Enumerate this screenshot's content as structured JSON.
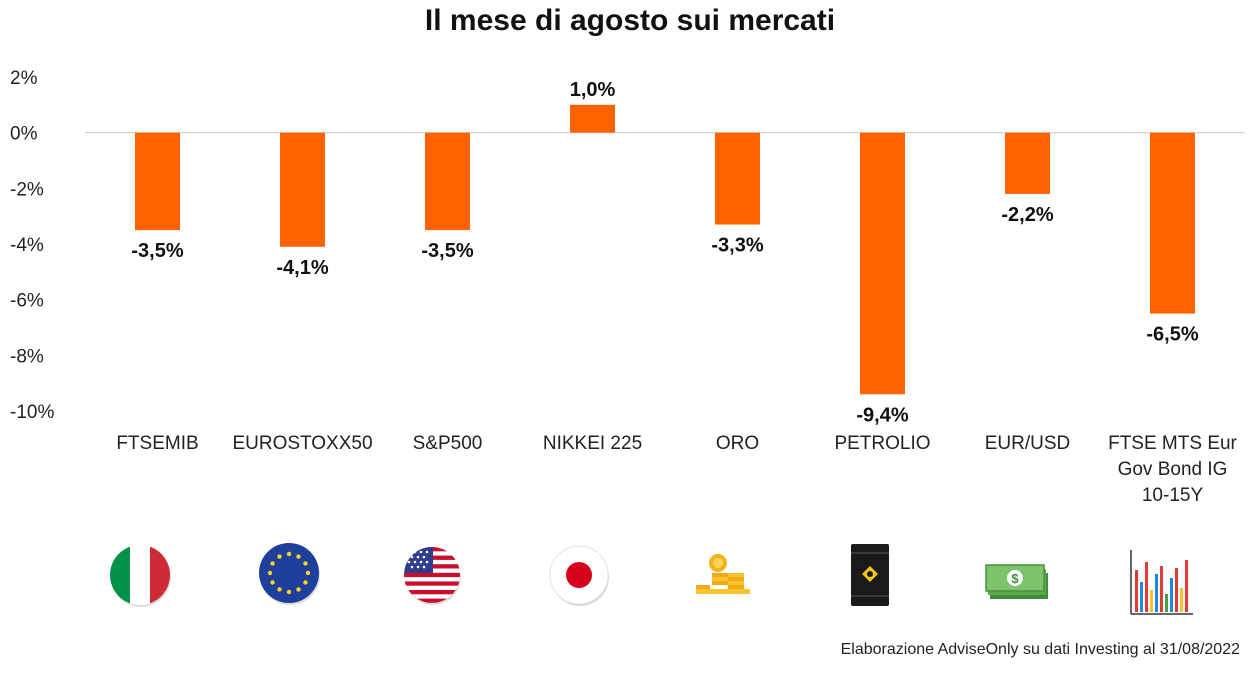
{
  "chart_data": {
    "type": "bar",
    "title": "Il mese di agosto sui mercati",
    "xlabel": "",
    "ylabel": "",
    "ylim": [
      -10,
      2
    ],
    "yticks": [
      2,
      0,
      -2,
      -4,
      -6,
      -8,
      -10
    ],
    "ytick_labels": [
      "2%",
      "0%",
      "-2%",
      "-4%",
      "-6%",
      "-8%",
      "-10%"
    ],
    "categories": [
      [
        "FTSEMIB"
      ],
      [
        "EUROSTOXX50"
      ],
      [
        "S&P500"
      ],
      [
        "NIKKEI 225"
      ],
      [
        "ORO"
      ],
      [
        "PETROLIO"
      ],
      [
        "EUR/USD"
      ],
      [
        "FTSE MTS Eur",
        "Gov Bond IG",
        "10-15Y"
      ]
    ],
    "values": [
      -3.5,
      -4.1,
      -3.5,
      1.0,
      -3.3,
      -9.4,
      -2.2,
      -6.5
    ],
    "data_labels": [
      "-3,5%",
      "-4,1%",
      "-3,5%",
      "1,0%",
      "-3,3%",
      "-9,4%",
      "-2,2%",
      "-6,5%"
    ],
    "grid": false,
    "legend": "none",
    "bar_color": "#FF6200"
  },
  "icons": [
    "italy-flag-icon",
    "eu-flag-icon",
    "usa-flag-icon",
    "japan-flag-icon",
    "gold-coins-icon",
    "oil-barrel-icon",
    "dollar-banknote-icon",
    "bar-chart-icon"
  ],
  "source_note": "Elaborazione AdviseOnly su dati Investing al 31/08/2022"
}
